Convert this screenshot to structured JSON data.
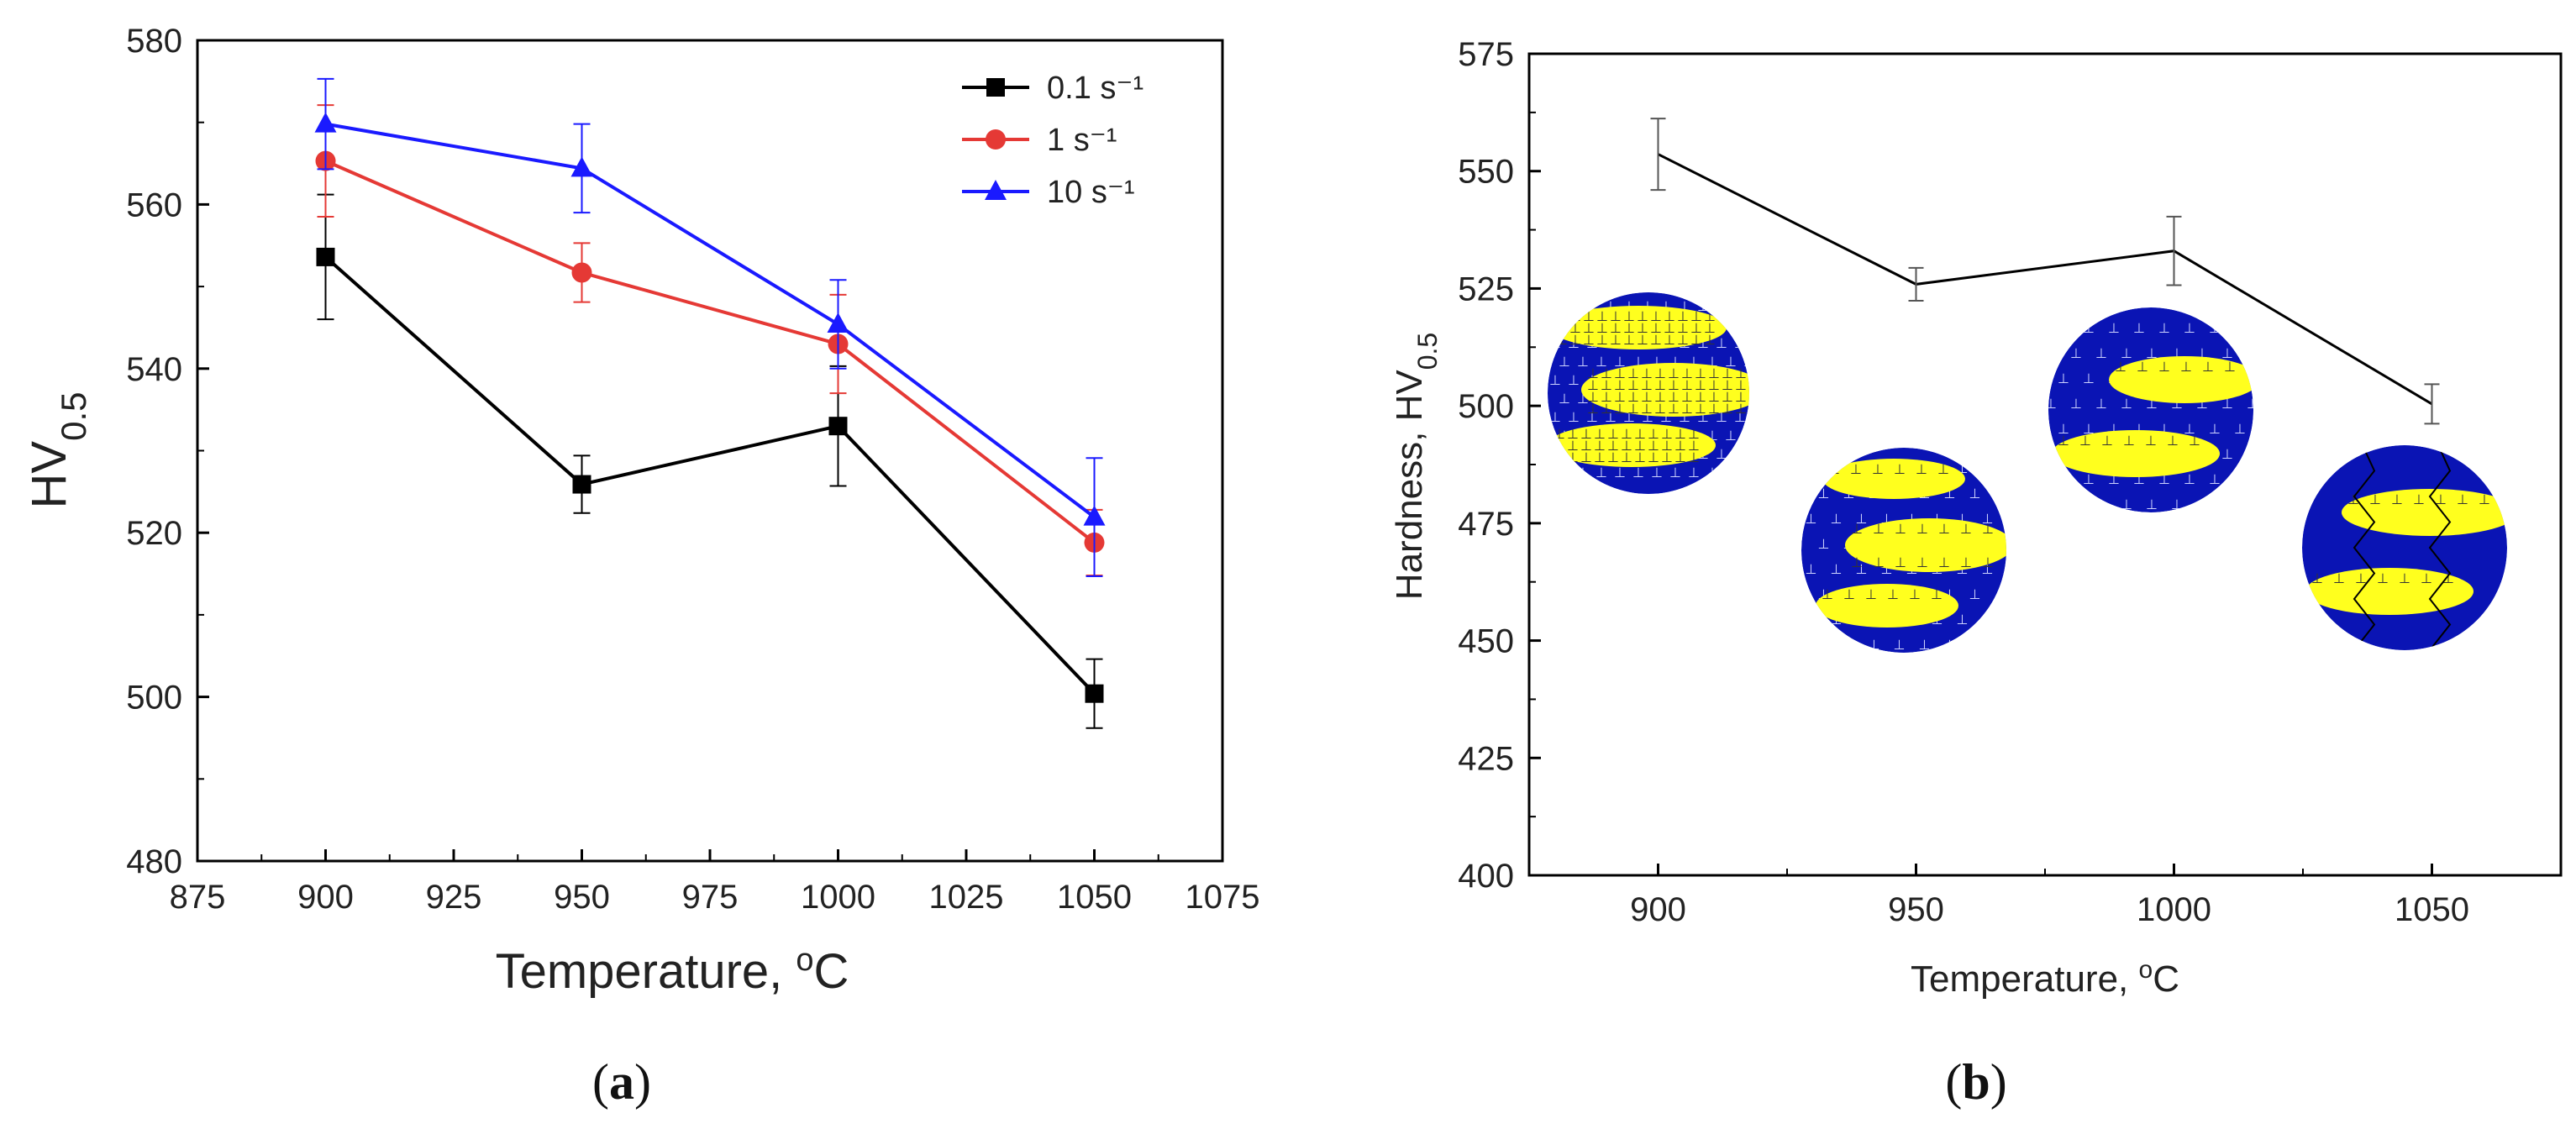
{
  "chart_data": [
    {
      "type": "line",
      "panel_label": "a",
      "xlabel": "Temperature, °C",
      "ylabel": "HV0.5",
      "xlim": [
        875,
        1075
      ],
      "ylim": [
        480,
        580
      ],
      "xticks": [
        875,
        900,
        925,
        950,
        975,
        1000,
        1025,
        1050,
        1075
      ],
      "yticks": [
        480,
        500,
        520,
        540,
        560,
        580
      ],
      "legend_position": "top-right",
      "x": [
        900,
        950,
        1000,
        1050
      ],
      "series": [
        {
          "name": "0.1 s⁻¹",
          "color": "#000000",
          "marker": "square",
          "values": [
            553.6,
            525.9,
            533.0,
            500.4
          ],
          "errors": [
            7.6,
            3.5,
            7.3,
            4.2
          ]
        },
        {
          "name": "1 s⁻¹",
          "color": "#e53935",
          "marker": "circle",
          "values": [
            565.3,
            551.7,
            543.0,
            518.8
          ],
          "errors": [
            6.8,
            3.6,
            6.0,
            4.0
          ]
        },
        {
          "name": "10 s⁻¹",
          "color": "#1a1aff",
          "marker": "triangle",
          "values": [
            569.8,
            564.4,
            545.4,
            521.9
          ],
          "errors": [
            5.5,
            5.4,
            5.4,
            7.2
          ]
        }
      ]
    },
    {
      "type": "line",
      "panel_label": "b",
      "xlabel": "Temperature, °C",
      "ylabel": "Hardness, HV0.5",
      "xlim": [
        875,
        1075
      ],
      "ylim": [
        400,
        575
      ],
      "xticks": [
        900,
        950,
        1000,
        1050
      ],
      "yticks": [
        400,
        425,
        450,
        475,
        500,
        525,
        550,
        575
      ],
      "x": [
        900,
        950,
        1000,
        1050
      ],
      "series": [
        {
          "name": "Hardness",
          "color": "#000000",
          "marker": "none",
          "values": [
            553.6,
            525.9,
            533.0,
            500.4
          ],
          "errors": [
            7.6,
            3.5,
            7.3,
            4.2
          ]
        }
      ],
      "microstructure_insets": [
        "fine-bands-900",
        "bands-950",
        "bands-1000",
        "recrystallized-1050"
      ]
    }
  ],
  "colors": {
    "matrix": "#0a14b4",
    "band": "#ffff1e",
    "dislocation": "#cfd4ff"
  }
}
